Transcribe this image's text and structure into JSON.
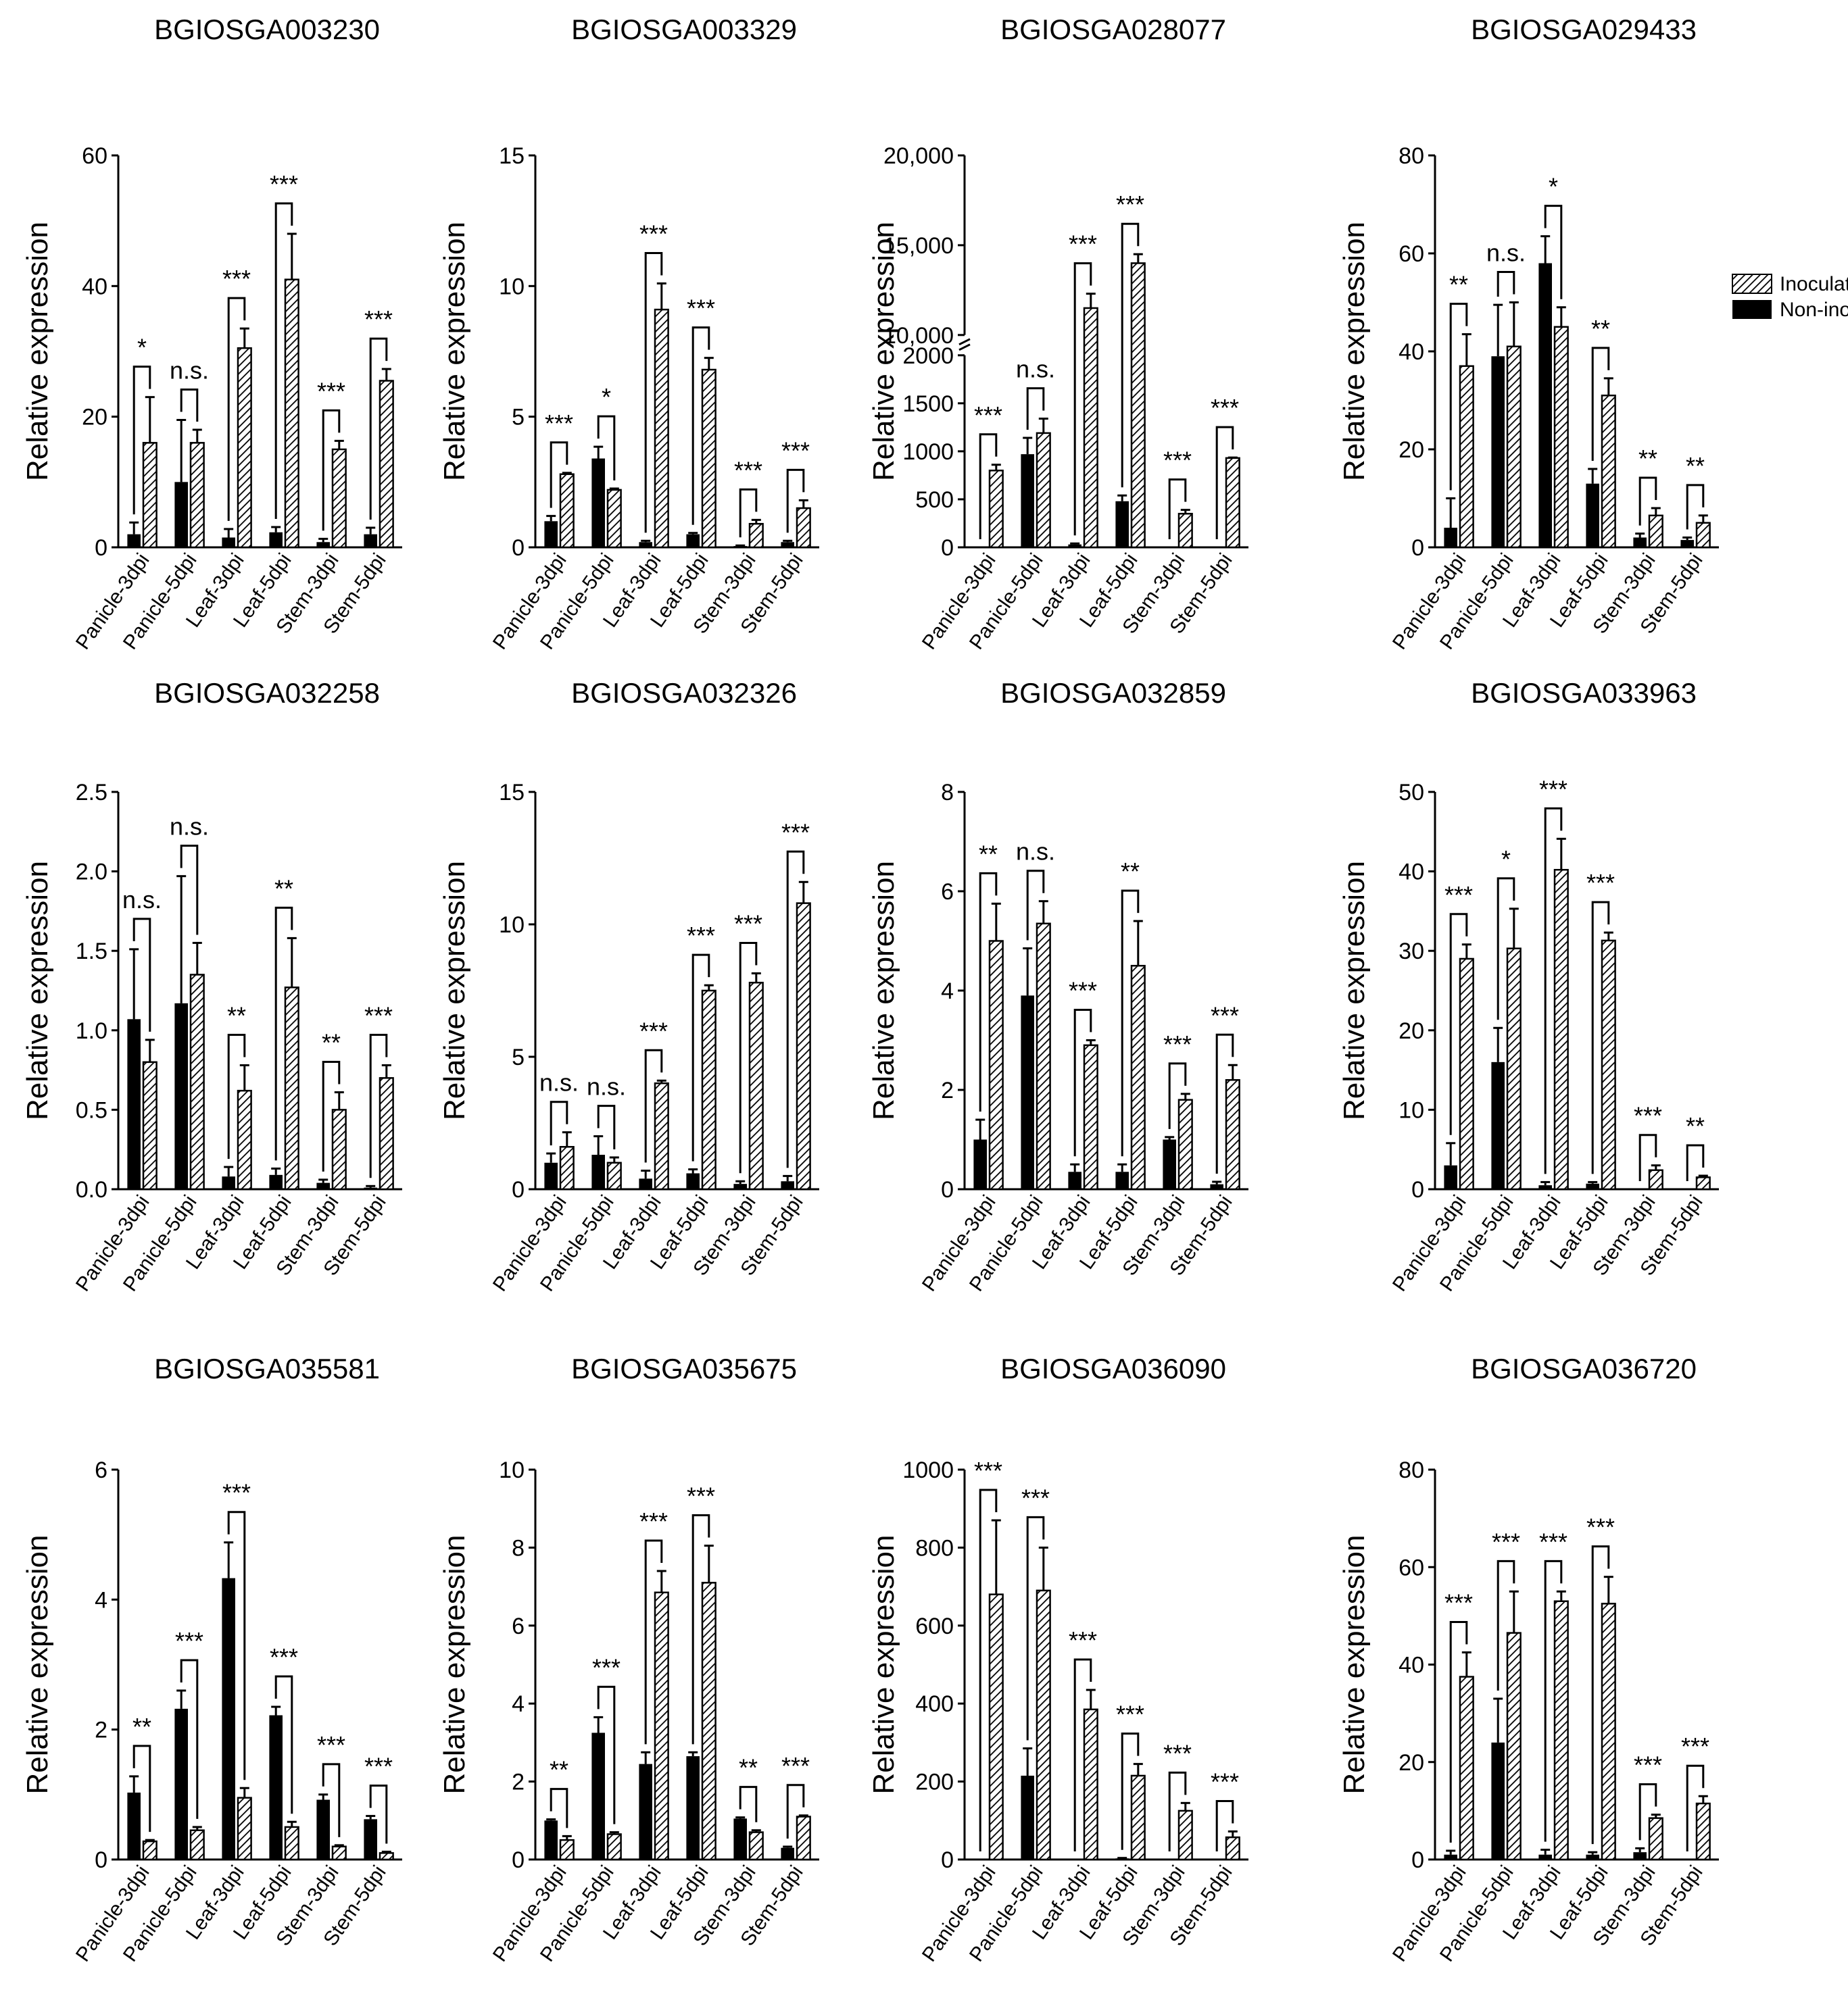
{
  "figure": {
    "categories": [
      "Panicle-3dpi",
      "Panicle-5dpi",
      "Leaf-3dpi",
      "Leaf-5dpi",
      "Stem-3dpi",
      "Stem-5dpi"
    ],
    "ylabel": "Relative expression",
    "legend": {
      "inoculated": "Inoculated",
      "non_inoculated": "Non-inoculated"
    },
    "colors": {
      "non_inoculated": "#000000",
      "inoculated_hatch": "#000000",
      "background": "#ffffff"
    }
  },
  "chart_data": [
    {
      "type": "bar",
      "title": "BGIOSGA003230",
      "ylabel": "Relative expression",
      "categories": [
        "Panicle-3dpi",
        "Panicle-5dpi",
        "Leaf-3dpi",
        "Leaf-5dpi",
        "Stem-3dpi",
        "Stem-5dpi"
      ],
      "ylim": [
        0,
        60
      ],
      "ticks": [
        0,
        20,
        40,
        60
      ],
      "tick_labels": [
        "0",
        "20",
        "40",
        "60"
      ],
      "series": [
        {
          "name": "Non-inoculated",
          "values": [
            2,
            10,
            1.5,
            2.3,
            0.8,
            2
          ],
          "errors": [
            1.8,
            9.5,
            1.3,
            0.8,
            0.5,
            1
          ]
        },
        {
          "name": "Inoculated",
          "values": [
            16,
            16,
            30.5,
            41,
            15,
            25.5
          ],
          "errors": [
            7,
            2,
            3,
            7,
            1.3,
            1.8
          ]
        }
      ],
      "significance": [
        "*",
        "n.s.",
        "***",
        "***",
        "***",
        "***"
      ]
    },
    {
      "type": "bar",
      "title": "BGIOSGA003329",
      "ylabel": "Relative expression",
      "categories": [
        "Panicle-3dpi",
        "Panicle-5dpi",
        "Leaf-3dpi",
        "Leaf-5dpi",
        "Stem-3dpi",
        "Stem-5dpi"
      ],
      "ylim": [
        0,
        15
      ],
      "ticks": [
        0,
        5,
        10,
        15
      ],
      "tick_labels": [
        "0",
        "5",
        "10",
        "15"
      ],
      "series": [
        {
          "name": "Non-inoculated",
          "values": [
            1,
            3.4,
            0.2,
            0.5,
            0.05,
            0.2
          ],
          "errors": [
            0.2,
            0.45,
            0.05,
            0.05,
            0.02,
            0.05
          ]
        },
        {
          "name": "Inoculated",
          "values": [
            2.8,
            2.2,
            9.1,
            6.8,
            0.9,
            1.5
          ],
          "errors": [
            0.05,
            0.05,
            1,
            0.45,
            0.15,
            0.3
          ]
        }
      ],
      "significance": [
        "***",
        "*",
        "***",
        "***",
        "***",
        "***"
      ]
    },
    {
      "type": "bar",
      "title": "BGIOSGA028077",
      "ylabel": "Relative expression",
      "broken_axis": true,
      "categories": [
        "Panicle-3dpi",
        "Panicle-5dpi",
        "Leaf-3dpi",
        "Leaf-5dpi",
        "Stem-3dpi",
        "Stem-5dpi"
      ],
      "ylim": [
        0,
        20000
      ],
      "ticks": [
        0,
        500,
        1000,
        1500,
        2000,
        10000,
        15000,
        20000
      ],
      "tick_labels": [
        "0",
        "500",
        "1000",
        "1500",
        "2000",
        "10,000",
        "15,000",
        "20,000"
      ],
      "series": [
        {
          "name": "Non-inoculated",
          "values": [
            0,
            970,
            30,
            480,
            0,
            0
          ],
          "errors": [
            0,
            170,
            10,
            60,
            0,
            0
          ]
        },
        {
          "name": "Inoculated",
          "values": [
            800,
            1190,
            11500,
            14000,
            350,
            930
          ],
          "errors": [
            60,
            150,
            800,
            500,
            40,
            5
          ]
        }
      ],
      "significance": [
        "***",
        "n.s.",
        "***",
        "***",
        "***",
        "***"
      ]
    },
    {
      "type": "bar",
      "title": "BGIOSGA029433",
      "ylabel": "Relative expression",
      "categories": [
        "Panicle-3dpi",
        "Panicle-5dpi",
        "Leaf-3dpi",
        "Leaf-5dpi",
        "Stem-3dpi",
        "Stem-5dpi"
      ],
      "ylim": [
        0,
        80
      ],
      "ticks": [
        0,
        20,
        40,
        60,
        80
      ],
      "tick_labels": [
        "0",
        "20",
        "40",
        "60",
        "80"
      ],
      "legend": {
        "position": "top-right",
        "entries": [
          "Inoculated",
          "Non-inoculated"
        ]
      },
      "series": [
        {
          "name": "Non-inoculated",
          "values": [
            4,
            39,
            58,
            13,
            2,
            1.5
          ],
          "errors": [
            6,
            10.5,
            5.5,
            3,
            0.8,
            0.5
          ]
        },
        {
          "name": "Inoculated",
          "values": [
            37,
            41,
            45,
            31,
            6.5,
            5
          ],
          "errors": [
            6.5,
            9,
            4,
            3.5,
            1.5,
            1.5
          ]
        }
      ],
      "significance": [
        "**",
        "n.s.",
        "*",
        "**",
        "**",
        "**"
      ]
    },
    {
      "type": "bar",
      "title": "BGIOSGA032258",
      "ylabel": "Relative expression",
      "categories": [
        "Panicle-3dpi",
        "Panicle-5dpi",
        "Leaf-3dpi",
        "Leaf-5dpi",
        "Stem-3dpi",
        "Stem-5dpi"
      ],
      "ylim": [
        0,
        2.5
      ],
      "ticks": [
        0,
        0.5,
        1,
        1.5,
        2,
        2.5
      ],
      "tick_labels": [
        "0.0",
        "0.5",
        "1.0",
        "1.5",
        "2.0",
        "2.5"
      ],
      "series": [
        {
          "name": "Non-inoculated",
          "values": [
            1.07,
            1.17,
            0.08,
            0.09,
            0.04,
            0.01
          ],
          "errors": [
            0.44,
            0.8,
            0.06,
            0.04,
            0.02,
            0.01
          ]
        },
        {
          "name": "Inoculated",
          "values": [
            0.8,
            1.35,
            0.62,
            1.27,
            0.5,
            0.7
          ],
          "errors": [
            0.14,
            0.2,
            0.16,
            0.31,
            0.11,
            0.08
          ]
        }
      ],
      "significance": [
        "n.s.",
        "n.s.",
        "**",
        "**",
        "**",
        "***"
      ]
    },
    {
      "type": "bar",
      "title": "BGIOSGA032326",
      "ylabel": "Relative expression",
      "categories": [
        "Panicle-3dpi",
        "Panicle-5dpi",
        "Leaf-3dpi",
        "Leaf-5dpi",
        "Stem-3dpi",
        "Stem-5dpi"
      ],
      "ylim": [
        0,
        15
      ],
      "ticks": [
        0,
        5,
        10,
        15
      ],
      "tick_labels": [
        "0",
        "5",
        "10",
        "15"
      ],
      "series": [
        {
          "name": "Non-inoculated",
          "values": [
            1,
            1.3,
            0.4,
            0.6,
            0.2,
            0.3
          ],
          "errors": [
            0.35,
            0.7,
            0.3,
            0.15,
            0.1,
            0.2
          ]
        },
        {
          "name": "Inoculated",
          "values": [
            1.6,
            1,
            4,
            7.5,
            7.8,
            10.8
          ],
          "errors": [
            0.55,
            0.2,
            0.1,
            0.2,
            0.35,
            0.8
          ]
        }
      ],
      "significance": [
        "n.s.",
        "n.s.",
        "***",
        "***",
        "***",
        "***"
      ]
    },
    {
      "type": "bar",
      "title": "BGIOSGA032859",
      "ylabel": "Relative expression",
      "categories": [
        "Panicle-3dpi",
        "Panicle-5dpi",
        "Leaf-3dpi",
        "Leaf-5dpi",
        "Stem-3dpi",
        "Stem-5dpi"
      ],
      "ylim": [
        0,
        8
      ],
      "ticks": [
        0,
        2,
        4,
        6,
        8
      ],
      "tick_labels": [
        "0",
        "2",
        "4",
        "6",
        "8"
      ],
      "series": [
        {
          "name": "Non-inoculated",
          "values": [
            1,
            3.9,
            0.35,
            0.35,
            1,
            0.1
          ],
          "errors": [
            0.4,
            0.95,
            0.15,
            0.15,
            0.05,
            0.05
          ]
        },
        {
          "name": "Inoculated",
          "values": [
            5,
            5.35,
            2.9,
            4.5,
            1.8,
            2.2
          ],
          "errors": [
            0.75,
            0.45,
            0.1,
            0.9,
            0.12,
            0.3
          ]
        }
      ],
      "significance": [
        "**",
        "n.s.",
        "***",
        "**",
        "***",
        "***"
      ]
    },
    {
      "type": "bar",
      "title": "BGIOSGA033963",
      "ylabel": "Relative expression",
      "categories": [
        "Panicle-3dpi",
        "Panicle-5dpi",
        "Leaf-3dpi",
        "Leaf-5dpi",
        "Stem-3dpi",
        "Stem-5dpi"
      ],
      "ylim": [
        0,
        50
      ],
      "ticks": [
        0,
        10,
        20,
        30,
        40,
        50
      ],
      "tick_labels": [
        "0",
        "10",
        "20",
        "30",
        "40",
        "50"
      ],
      "series": [
        {
          "name": "Non-inoculated",
          "values": [
            3,
            16,
            0.5,
            0.7,
            0,
            0
          ],
          "errors": [
            2.8,
            4.3,
            0.4,
            0.2,
            0,
            0
          ]
        },
        {
          "name": "Inoculated",
          "values": [
            29,
            30.3,
            40.2,
            31.3,
            2.4,
            1.5
          ],
          "errors": [
            1.8,
            5,
            3.9,
            1,
            0.6,
            0.2
          ]
        }
      ],
      "significance": [
        "***",
        "*",
        "***",
        "***",
        "***",
        "**"
      ]
    },
    {
      "type": "bar",
      "title": "BGIOSGA035581",
      "ylabel": "Relative expression",
      "categories": [
        "Panicle-3dpi",
        "Panicle-5dpi",
        "Leaf-3dpi",
        "Leaf-5dpi",
        "Stem-3dpi",
        "Stem-5dpi"
      ],
      "ylim": [
        0,
        6
      ],
      "ticks": [
        0,
        2,
        4,
        6
      ],
      "tick_labels": [
        "0",
        "2",
        "4",
        "6"
      ],
      "series": [
        {
          "name": "Non-inoculated",
          "values": [
            1.03,
            2.32,
            4.33,
            2.22,
            0.92,
            0.62
          ],
          "errors": [
            0.25,
            0.28,
            0.55,
            0.13,
            0.08,
            0.05
          ]
        },
        {
          "name": "Inoculated",
          "values": [
            0.28,
            0.45,
            0.95,
            0.5,
            0.2,
            0.1
          ],
          "errors": [
            0.02,
            0.05,
            0.15,
            0.08,
            0.02,
            0.02
          ]
        }
      ],
      "significance": [
        "**",
        "***",
        "***",
        "***",
        "***",
        "***"
      ]
    },
    {
      "type": "bar",
      "title": "BGIOSGA035675",
      "ylabel": "Relative expression",
      "categories": [
        "Panicle-3dpi",
        "Panicle-5dpi",
        "Leaf-3dpi",
        "Leaf-5dpi",
        "Stem-3dpi",
        "Stem-5dpi"
      ],
      "ylim": [
        0,
        10
      ],
      "ticks": [
        0,
        2,
        4,
        6,
        8,
        10
      ],
      "tick_labels": [
        "0",
        "2",
        "4",
        "6",
        "8",
        "10"
      ],
      "series": [
        {
          "name": "Non-inoculated",
          "values": [
            1,
            3.25,
            2.45,
            2.65,
            1.05,
            0.3
          ],
          "errors": [
            0.03,
            0.4,
            0.3,
            0.1,
            0.03,
            0.03
          ]
        },
        {
          "name": "Inoculated",
          "values": [
            0.5,
            0.65,
            6.85,
            7.1,
            0.7,
            1.1
          ],
          "errors": [
            0.1,
            0.05,
            0.55,
            0.95,
            0.05,
            0.03
          ]
        }
      ],
      "significance": [
        "**",
        "***",
        "***",
        "***",
        "**",
        "***"
      ]
    },
    {
      "type": "bar",
      "title": "BGIOSGA036090",
      "ylabel": "Relative expression",
      "categories": [
        "Panicle-3dpi",
        "Panicle-5dpi",
        "Leaf-3dpi",
        "Leaf-5dpi",
        "Stem-3dpi",
        "Stem-5dpi"
      ],
      "ylim": [
        0,
        1000
      ],
      "ticks": [
        0,
        200,
        400,
        600,
        800,
        1000
      ],
      "tick_labels": [
        "0",
        "200",
        "400",
        "600",
        "800",
        "1000"
      ],
      "series": [
        {
          "name": "Non-inoculated",
          "values": [
            0,
            215,
            0,
            3,
            0,
            0
          ],
          "errors": [
            0,
            70,
            0,
            1,
            0,
            0
          ]
        },
        {
          "name": "Inoculated",
          "values": [
            680,
            690,
            385,
            215,
            125,
            57
          ],
          "errors": [
            190,
            110,
            50,
            30,
            20,
            15
          ]
        }
      ],
      "significance": [
        "***",
        "***",
        "***",
        "***",
        "***",
        "***"
      ]
    },
    {
      "type": "bar",
      "title": "BGIOSGA036720",
      "ylabel": "Relative expression",
      "categories": [
        "Panicle-3dpi",
        "Panicle-5dpi",
        "Leaf-3dpi",
        "Leaf-5dpi",
        "Stem-3dpi",
        "Stem-5dpi"
      ],
      "ylim": [
        0,
        80
      ],
      "ticks": [
        0,
        20,
        40,
        60,
        80
      ],
      "tick_labels": [
        "0",
        "20",
        "40",
        "60",
        "80"
      ],
      "series": [
        {
          "name": "Non-inoculated",
          "values": [
            1,
            24,
            1,
            1,
            1.5,
            0
          ],
          "errors": [
            0.8,
            9,
            1,
            0.5,
            0.8,
            0
          ]
        },
        {
          "name": "Inoculated",
          "values": [
            37.5,
            46.5,
            53,
            52.5,
            8.5,
            11.5
          ],
          "errors": [
            5,
            8.5,
            2,
            5.5,
            0.7,
            1.5
          ]
        }
      ],
      "significance": [
        "***",
        "***",
        "***",
        "***",
        "***",
        "***"
      ]
    }
  ]
}
